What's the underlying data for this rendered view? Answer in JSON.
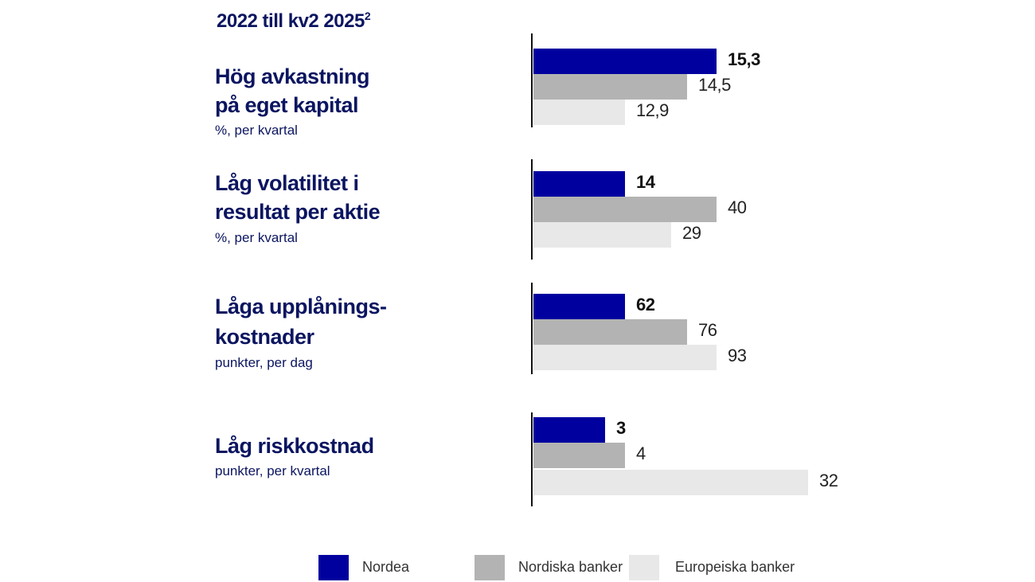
{
  "chart_data": {
    "type": "bar",
    "orientation": "horizontal",
    "title": "2022 till kv2 2025",
    "title_superscript": "2",
    "colors": {
      "Nordea": "#00009f",
      "Nordiska banker": "#b3b3b3",
      "Europeiska banker": "#e8e8e8",
      "text": "#0b1560"
    },
    "legend": [
      "Nordea",
      "Nordiska banker",
      "Europeiska banker"
    ],
    "legend_position": "bottom",
    "groups": [
      {
        "title_lines": [
          "Hög avkastning",
          "på eget kapital"
        ],
        "subtitle": "%, per kvartal",
        "values": [
          15.3,
          14.5,
          12.9
        ],
        "labels": [
          "15,3",
          "14,5",
          "12,9"
        ]
      },
      {
        "title_lines": [
          "Låg volatilitet i",
          "resultat per aktie"
        ],
        "subtitle": "%, per kvartal",
        "values": [
          14,
          40,
          29
        ],
        "labels": [
          "14",
          "40",
          "29"
        ]
      },
      {
        "title_lines": [
          "Låga upplånings-",
          "kostnader"
        ],
        "subtitle": "punkter, per dag",
        "values": [
          62,
          76,
          93
        ],
        "labels": [
          "62",
          "76",
          "93"
        ]
      },
      {
        "title_lines": [
          "Låg riskkostnad"
        ],
        "subtitle": "punkter, per kvartal",
        "values": [
          3,
          4,
          32
        ],
        "labels": [
          "3",
          "4",
          "32"
        ]
      }
    ]
  }
}
